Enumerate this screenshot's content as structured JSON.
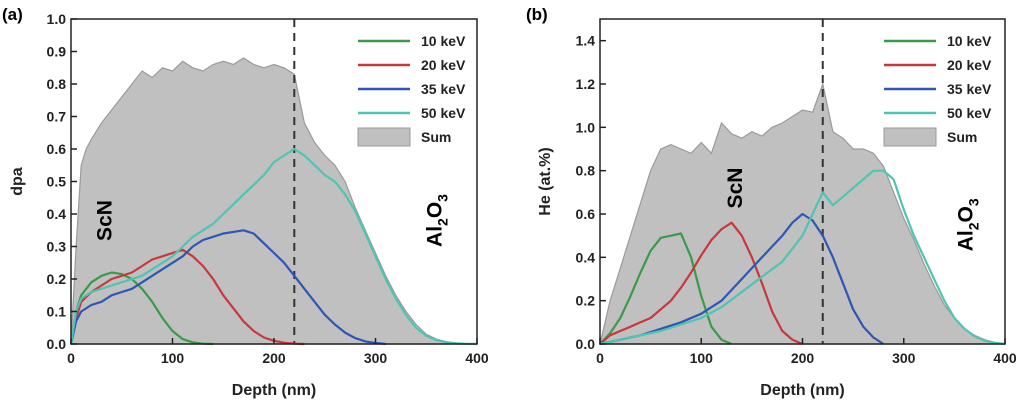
{
  "colors": {
    "10 keV": "#3a9a48",
    "20 keV": "#c8383b",
    "35 keV": "#2d57b5",
    "50 keV": "#4fc4b2",
    "Sum": "#c0c0c0",
    "Sum_edge": "#9a9a9a",
    "axis": "#222222"
  },
  "chart_data": [
    {
      "type": "area",
      "panel_label": "(a)",
      "xlabel": "Depth (nm)",
      "ylabel": "dpa",
      "xlim": [
        0,
        400
      ],
      "ylim": [
        0,
        1.0
      ],
      "xticks": [
        "0",
        "100",
        "200",
        "300",
        "400"
      ],
      "yticks": [
        "0.0",
        "0.1",
        "0.2",
        "0.3",
        "0.4",
        "0.5",
        "0.6",
        "0.7",
        "0.8",
        "0.9",
        "1.0"
      ],
      "xtick_values": [
        0,
        100,
        200,
        300,
        400
      ],
      "ytick_values": [
        0,
        0.1,
        0.2,
        0.3,
        0.4,
        0.5,
        0.6,
        0.7,
        0.8,
        0.9,
        1.0
      ],
      "interface_depth": 220,
      "annotations": [
        {
          "text": "ScN",
          "x": 40,
          "y": 0.38,
          "rotate": -90
        },
        {
          "main": "Al",
          "sub": "2",
          "main2": "O",
          "sub2": "3",
          "x": 365,
          "y": 0.38,
          "rotate": -90
        }
      ],
      "legend": [
        "10 keV",
        "20 keV",
        "35 keV",
        "50 keV",
        "Sum"
      ],
      "series": [
        {
          "name": "Sum",
          "fill": true,
          "x": [
            0,
            5,
            10,
            15,
            20,
            30,
            40,
            50,
            60,
            70,
            80,
            90,
            100,
            110,
            120,
            130,
            140,
            150,
            160,
            170,
            180,
            190,
            200,
            210,
            220,
            230,
            240,
            250,
            260,
            270,
            280,
            290,
            300,
            310,
            320,
            330,
            340,
            350,
            360,
            370,
            380,
            390,
            400
          ],
          "y": [
            0,
            0.3,
            0.55,
            0.6,
            0.63,
            0.68,
            0.72,
            0.76,
            0.8,
            0.84,
            0.82,
            0.85,
            0.84,
            0.87,
            0.85,
            0.84,
            0.86,
            0.87,
            0.86,
            0.88,
            0.86,
            0.85,
            0.86,
            0.85,
            0.83,
            0.68,
            0.62,
            0.58,
            0.55,
            0.5,
            0.42,
            0.35,
            0.28,
            0.21,
            0.15,
            0.1,
            0.06,
            0.03,
            0.015,
            0.007,
            0.003,
            0.001,
            0
          ]
        },
        {
          "name": "10 keV",
          "x": [
            0,
            5,
            10,
            20,
            30,
            40,
            50,
            60,
            70,
            80,
            90,
            100,
            110,
            120,
            130,
            140
          ],
          "y": [
            0,
            0.1,
            0.15,
            0.19,
            0.21,
            0.22,
            0.215,
            0.2,
            0.17,
            0.13,
            0.08,
            0.04,
            0.015,
            0.005,
            0.001,
            0
          ]
        },
        {
          "name": "20 keV",
          "x": [
            0,
            5,
            10,
            20,
            30,
            40,
            50,
            60,
            70,
            80,
            90,
            100,
            110,
            120,
            130,
            140,
            150,
            160,
            170,
            180,
            190,
            200,
            210,
            220,
            230
          ],
          "y": [
            0,
            0.08,
            0.13,
            0.16,
            0.18,
            0.2,
            0.21,
            0.22,
            0.24,
            0.26,
            0.27,
            0.28,
            0.29,
            0.27,
            0.24,
            0.2,
            0.15,
            0.11,
            0.07,
            0.04,
            0.02,
            0.01,
            0.004,
            0.001,
            0
          ]
        },
        {
          "name": "35 keV",
          "x": [
            0,
            5,
            10,
            20,
            30,
            40,
            50,
            60,
            70,
            80,
            90,
            100,
            110,
            120,
            130,
            140,
            150,
            160,
            170,
            180,
            190,
            200,
            210,
            220,
            230,
            240,
            250,
            260,
            270,
            280,
            290,
            300,
            310
          ],
          "y": [
            0,
            0.07,
            0.1,
            0.12,
            0.13,
            0.15,
            0.16,
            0.17,
            0.19,
            0.21,
            0.23,
            0.25,
            0.27,
            0.3,
            0.32,
            0.33,
            0.34,
            0.345,
            0.35,
            0.34,
            0.31,
            0.28,
            0.25,
            0.21,
            0.17,
            0.13,
            0.09,
            0.06,
            0.035,
            0.018,
            0.008,
            0.003,
            0
          ]
        },
        {
          "name": "50 keV",
          "x": [
            0,
            5,
            10,
            20,
            30,
            40,
            50,
            60,
            70,
            80,
            90,
            100,
            110,
            120,
            130,
            140,
            150,
            160,
            170,
            180,
            190,
            200,
            210,
            220,
            230,
            240,
            250,
            260,
            270,
            280,
            290,
            300,
            310,
            320,
            330,
            340,
            350,
            360,
            370,
            380,
            390,
            400
          ],
          "y": [
            0,
            0.1,
            0.14,
            0.16,
            0.17,
            0.18,
            0.19,
            0.2,
            0.21,
            0.23,
            0.25,
            0.27,
            0.3,
            0.33,
            0.35,
            0.37,
            0.4,
            0.43,
            0.46,
            0.49,
            0.52,
            0.56,
            0.58,
            0.6,
            0.58,
            0.55,
            0.52,
            0.5,
            0.46,
            0.41,
            0.34,
            0.27,
            0.2,
            0.14,
            0.09,
            0.05,
            0.025,
            0.012,
            0.005,
            0.002,
            0.0005,
            0
          ]
        }
      ]
    },
    {
      "type": "area",
      "panel_label": "(b)",
      "xlabel": "Depth (nm)",
      "ylabel": "He (at.%)",
      "xlim": [
        0,
        400
      ],
      "ylim": [
        0,
        1.5
      ],
      "xticks": [
        "0",
        "100",
        "200",
        "300",
        "400"
      ],
      "yticks": [
        "0.0",
        "0.2",
        "0.4",
        "0.6",
        "0.8",
        "1.0",
        "1.2",
        "1.4"
      ],
      "xtick_values": [
        0,
        100,
        200,
        300,
        400
      ],
      "ytick_values": [
        0,
        0.2,
        0.4,
        0.6,
        0.8,
        1.0,
        1.2,
        1.4
      ],
      "interface_depth": 220,
      "annotations": [
        {
          "text": "ScN",
          "x": 140,
          "y": 0.72,
          "rotate": -90
        },
        {
          "main": "Al",
          "sub": "2",
          "main2": "O",
          "sub2": "3",
          "x": 368,
          "y": 0.55,
          "rotate": -90
        }
      ],
      "legend": [
        "10 keV",
        "20 keV",
        "35 keV",
        "50 keV",
        "Sum"
      ],
      "series": [
        {
          "name": "Sum",
          "fill": true,
          "x": [
            0,
            10,
            20,
            30,
            40,
            50,
            60,
            70,
            80,
            90,
            100,
            110,
            120,
            130,
            140,
            150,
            160,
            170,
            180,
            190,
            200,
            210,
            220,
            230,
            240,
            250,
            260,
            270,
            280,
            290,
            300,
            310,
            320,
            330,
            340,
            350,
            360,
            370,
            380,
            390,
            400
          ],
          "y": [
            0,
            0.2,
            0.35,
            0.5,
            0.65,
            0.8,
            0.9,
            0.92,
            0.9,
            0.88,
            0.93,
            0.88,
            1.02,
            0.97,
            0.95,
            0.98,
            0.96,
            1.0,
            1.02,
            1.05,
            1.08,
            1.07,
            1.2,
            0.98,
            0.95,
            0.9,
            0.9,
            0.88,
            0.82,
            0.7,
            0.58,
            0.48,
            0.37,
            0.27,
            0.18,
            0.12,
            0.07,
            0.04,
            0.02,
            0.008,
            0
          ]
        },
        {
          "name": "10 keV",
          "x": [
            0,
            10,
            20,
            30,
            40,
            50,
            60,
            70,
            80,
            90,
            100,
            110,
            120,
            130
          ],
          "y": [
            0,
            0.05,
            0.12,
            0.22,
            0.33,
            0.43,
            0.49,
            0.5,
            0.51,
            0.4,
            0.22,
            0.08,
            0.02,
            0
          ]
        },
        {
          "name": "20 keV",
          "x": [
            0,
            10,
            20,
            30,
            40,
            50,
            60,
            70,
            80,
            90,
            100,
            110,
            120,
            130,
            140,
            150,
            160,
            170,
            180,
            190,
            200
          ],
          "y": [
            0,
            0.04,
            0.06,
            0.08,
            0.1,
            0.12,
            0.16,
            0.2,
            0.26,
            0.33,
            0.41,
            0.48,
            0.53,
            0.56,
            0.5,
            0.4,
            0.28,
            0.15,
            0.06,
            0.02,
            0
          ]
        },
        {
          "name": "35 keV",
          "x": [
            0,
            20,
            40,
            60,
            80,
            100,
            120,
            140,
            160,
            170,
            180,
            190,
            200,
            210,
            220,
            230,
            240,
            250,
            260,
            270,
            280
          ],
          "y": [
            0,
            0.02,
            0.04,
            0.07,
            0.1,
            0.14,
            0.2,
            0.3,
            0.4,
            0.45,
            0.5,
            0.56,
            0.6,
            0.57,
            0.5,
            0.4,
            0.28,
            0.16,
            0.08,
            0.03,
            0
          ]
        },
        {
          "name": "50 keV",
          "x": [
            0,
            20,
            40,
            60,
            80,
            100,
            120,
            140,
            160,
            180,
            200,
            210,
            220,
            230,
            240,
            250,
            260,
            270,
            280,
            290,
            300,
            310,
            320,
            330,
            340,
            350,
            360,
            370,
            380,
            390,
            400
          ],
          "y": [
            0,
            0.02,
            0.04,
            0.06,
            0.09,
            0.12,
            0.17,
            0.24,
            0.31,
            0.38,
            0.5,
            0.6,
            0.7,
            0.64,
            0.68,
            0.72,
            0.76,
            0.8,
            0.8,
            0.76,
            0.62,
            0.5,
            0.4,
            0.3,
            0.2,
            0.12,
            0.07,
            0.035,
            0.015,
            0.005,
            0
          ]
        }
      ]
    }
  ]
}
